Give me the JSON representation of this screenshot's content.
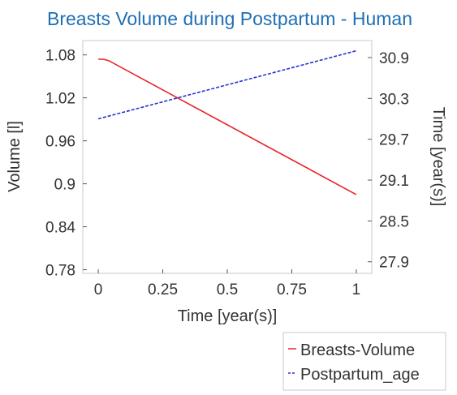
{
  "chart_data": {
    "type": "line",
    "title": "Breasts Volume during Postpartum - Human",
    "xlabel": "Time [year(s)]",
    "ylabel": "Volume [l]",
    "y2label": "Time [year(s)]",
    "xlim": [
      -0.06,
      1.06
    ],
    "ylim": [
      0.775,
      1.1
    ],
    "y2lim": [
      27.73,
      31.15
    ],
    "x_ticks": [
      0,
      0.25,
      0.5,
      0.75,
      1
    ],
    "x_tick_labels": [
      "0",
      "0.25",
      "0.5",
      "0.75",
      "1"
    ],
    "y_ticks": [
      0.78,
      0.84,
      0.9,
      0.96,
      1.02,
      1.08
    ],
    "y_tick_labels": [
      "0.78",
      "0.84",
      "0.9",
      "0.96",
      "1.02",
      "1.08"
    ],
    "y2_ticks": [
      27.9,
      28.5,
      29.1,
      29.7,
      30.3,
      30.9
    ],
    "y2_tick_labels": [
      "27.9",
      "28.5",
      "29.1",
      "29.7",
      "30.3",
      "30.9"
    ],
    "grid": false,
    "legend_position": "bottom-right",
    "series": [
      {
        "name": "Breasts-Volume",
        "axis": "left",
        "color": "#e8252b",
        "dash": "solid",
        "x": [
          0,
          0.02,
          0.04,
          1
        ],
        "y": [
          1.074,
          1.074,
          1.072,
          0.885
        ]
      },
      {
        "name": "Postpartum_age",
        "axis": "right",
        "color": "#2233cc",
        "dash": "dashed",
        "x": [
          0,
          1
        ],
        "y": [
          30.0,
          31.0
        ]
      }
    ]
  }
}
